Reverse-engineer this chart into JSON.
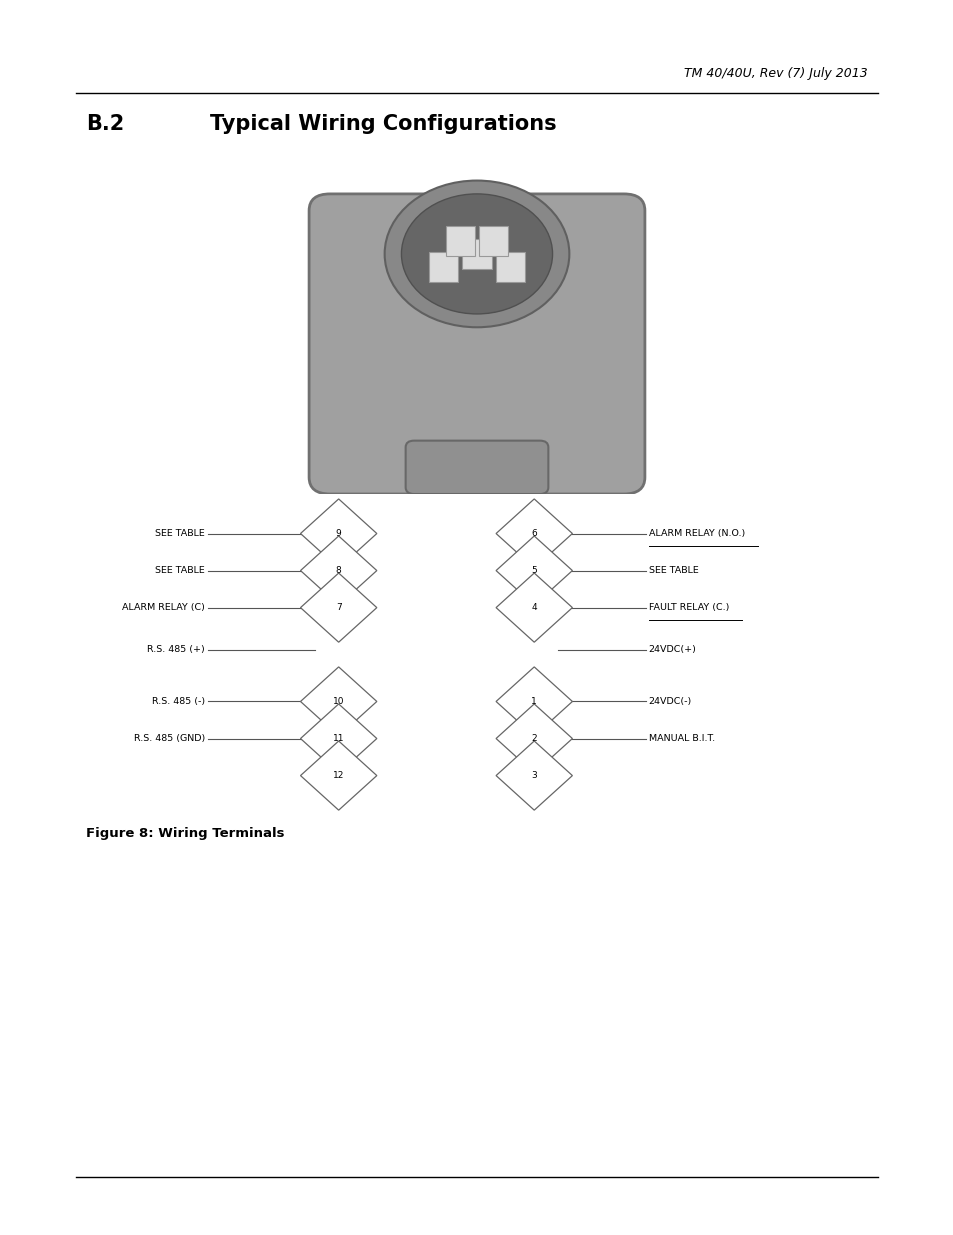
{
  "page_title": "TM 40/40U, Rev (7) July 2013",
  "section_heading_num": "B.2",
  "section_heading_txt": "Typical Wiring Configurations",
  "figure_caption": "Figure 8: Wiring Terminals",
  "bg_color": "#ffffff",
  "text_color": "#000000",
  "diamond_fill": "#ffffff",
  "diamond_edge": "#666666",
  "wire_color": "#555555",
  "left_labels_top": [
    "SEE TABLE",
    "SEE TABLE",
    "ALARM RELAY (C)",
    "R.S. 485 (+)"
  ],
  "left_labels_bot": [
    "R.S. 485 (-)",
    "R.S. 485 (GND)"
  ],
  "right_labels_top": [
    "ALARM RELAY (N.O.)",
    "SEE TABLE",
    "FAULT RELAY (C.)",
    "24VDC(+)"
  ],
  "right_labels_bot": [
    "24VDC(-)",
    "MANUAL B.I.T."
  ],
  "left_top_nums": [
    "9",
    "8",
    "7"
  ],
  "left_bot_nums": [
    "10",
    "11",
    "12"
  ],
  "right_top_nums": [
    "6",
    "5",
    "4"
  ],
  "right_bot_nums": [
    "1",
    "2",
    "3"
  ]
}
